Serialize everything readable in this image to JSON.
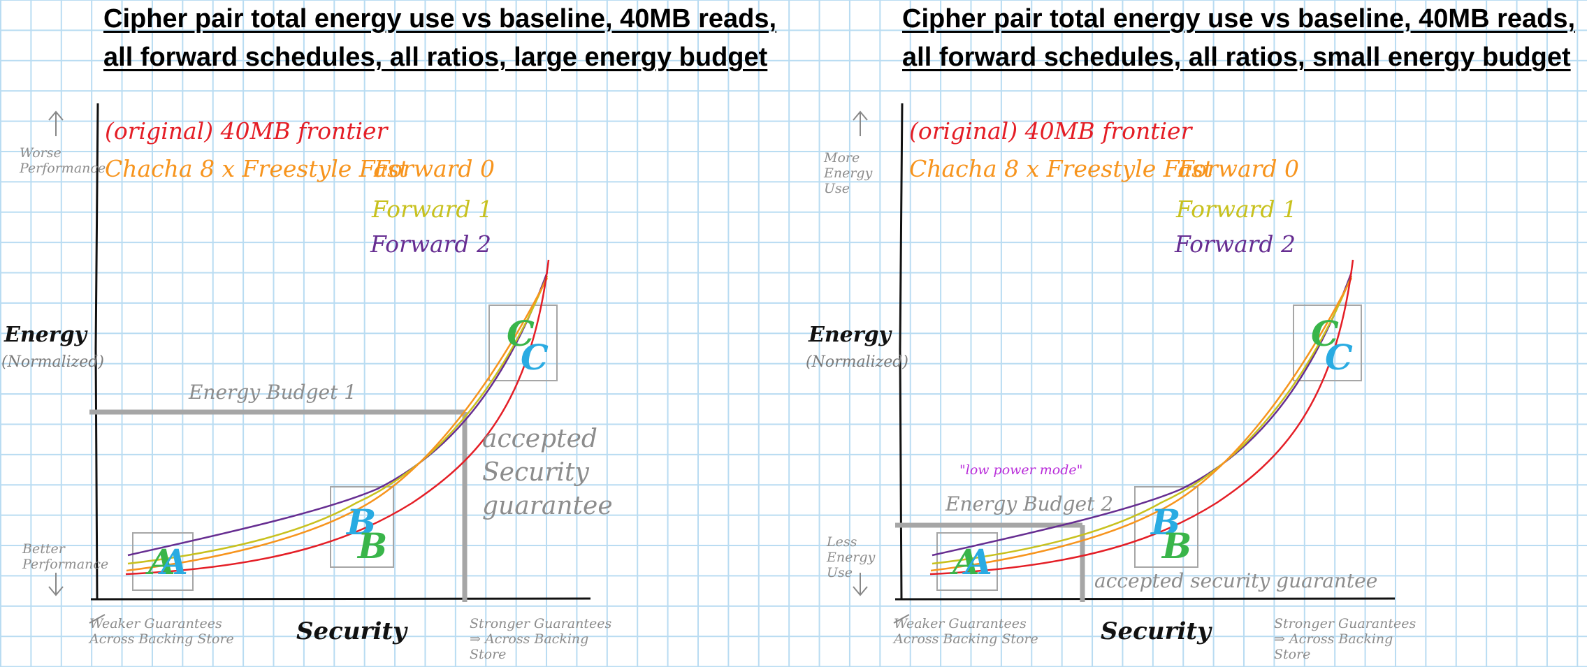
{
  "panels": [
    {
      "title": "Cipher pair total energy use vs baseline, 40MB reads, all forward schedules, all ratios, large energy budget",
      "legend": {
        "original": "(original) 40MB frontier",
        "chacha": "Chacha 8 x Freestyle Fast",
        "forward0": "Forward 0",
        "forward1": "Forward 1",
        "forward2": "Forward 2"
      },
      "y_axis": {
        "label": "Energy",
        "sub": "(Normalized)",
        "top_note": "Worse Performance",
        "bottom_note": "Better Performance"
      },
      "x_axis": {
        "label": "Security",
        "left_note": "Weaker Guarantees Across Backing Store",
        "right_note": "Stronger Guarantees ⇒ Across Backing Store"
      },
      "budget_label": "Energy Budget 1",
      "accepted_label": "accepted Security guarantee",
      "mode_label": "",
      "markers": {
        "a": "A",
        "b": "B",
        "c": "C"
      }
    },
    {
      "title": "Cipher pair total energy use vs baseline, 40MB reads, all forward schedules, all ratios, small energy budget",
      "legend": {
        "original": "(original) 40MB frontier",
        "chacha": "Chacha 8 x Freestyle Fast",
        "forward0": "Forward 0",
        "forward1": "Forward 1",
        "forward2": "Forward 2"
      },
      "y_axis": {
        "label": "Energy",
        "sub": "(Normalized)",
        "top_note": "More Energy Use",
        "bottom_note": "Less Energy Use"
      },
      "x_axis": {
        "label": "Security",
        "left_note": "Weaker Guarantees Across Backing Store",
        "right_note": "Stronger Guarantees ⇒ Across Backing Store"
      },
      "budget_label": "Energy Budget 2",
      "accepted_label": "accepted security guarantee",
      "mode_label": "\"low power mode\"",
      "markers": {
        "a": "A",
        "b": "B",
        "c": "C"
      }
    }
  ],
  "colors": {
    "original": "#e41e26",
    "forward0": "#f7941d",
    "forward1": "#c8c11e",
    "forward2": "#662d91",
    "budget": "#a6a6a6",
    "box": "#a6a6a6",
    "marker_green": "#39b54a",
    "marker_blue": "#29abe2",
    "mode_text": "#b82bd9",
    "grid": "#b9dcf2"
  }
}
